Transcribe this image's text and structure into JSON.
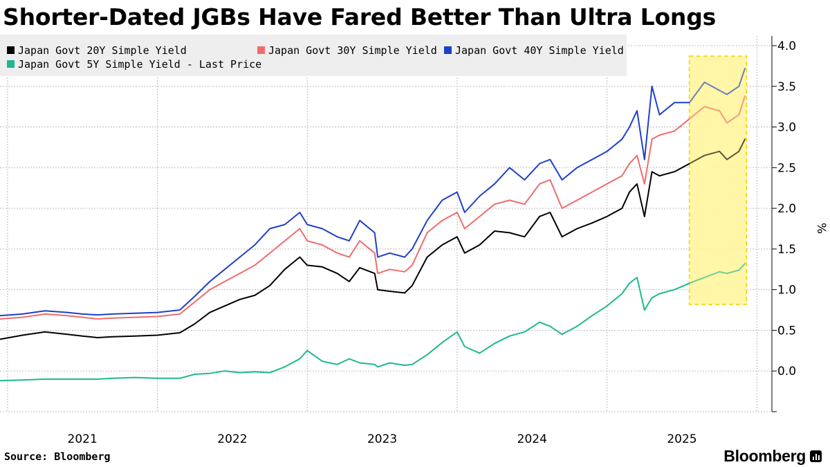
{
  "header": {
    "title": "Shorter-Dated JGBs Have Fared Better Than Ultra Longs"
  },
  "footer": {
    "source": "Source: Bloomberg",
    "brand": "Bloomberg"
  },
  "chart_data": {
    "type": "line",
    "title": "Shorter-Dated JGBs Have Fared Better Than Ultra Longs",
    "ylabel": "%",
    "xlabel": "",
    "ylim": [
      -0.5,
      4.0
    ],
    "xlim": [
      2020.45,
      2025.6
    ],
    "yticks": [
      0.0,
      0.5,
      1.0,
      1.5,
      2.0,
      2.5,
      3.0,
      3.5,
      4.0
    ],
    "ytick_labels": [
      "0.0",
      "0.5",
      "1.0",
      "1.5",
      "2.0",
      "2.5",
      "3.0",
      "3.5",
      "4.0"
    ],
    "xticks": [
      2021,
      2022,
      2023,
      2024,
      2025
    ],
    "xtick_labels": [
      "2021",
      "2022",
      "2023",
      "2024",
      "2025"
    ],
    "grid": true,
    "legend_position": "top-left",
    "highlight": {
      "x_start": 2025.05,
      "x_end": 2025.43,
      "y_start": 0.82,
      "y_end": 3.87,
      "color": "#fff59d",
      "border": "#f5d800"
    },
    "series": [
      {
        "name": "Japan Govt 20Y Simple Yield",
        "color": "#000000",
        "x": [
          2020.45,
          2020.6,
          2020.75,
          2020.9,
          2021.0,
          2021.1,
          2021.2,
          2021.35,
          2021.5,
          2021.65,
          2021.75,
          2021.85,
          2021.95,
          2022.05,
          2022.15,
          2022.25,
          2022.35,
          2022.45,
          2022.5,
          2022.6,
          2022.7,
          2022.78,
          2022.85,
          2022.95,
          2022.97,
          2023.05,
          2023.15,
          2023.2,
          2023.3,
          2023.4,
          2023.5,
          2023.55,
          2023.65,
          2023.75,
          2023.85,
          2023.95,
          2024.05,
          2024.12,
          2024.2,
          2024.3,
          2024.4,
          2024.5,
          2024.6,
          2024.65,
          2024.7,
          2024.75,
          2024.8,
          2024.85,
          2024.95,
          2025.05,
          2025.15,
          2025.25,
          2025.3,
          2025.38,
          2025.42
        ],
        "values": [
          0.39,
          0.44,
          0.48,
          0.45,
          0.43,
          0.41,
          0.42,
          0.43,
          0.44,
          0.47,
          0.58,
          0.72,
          0.8,
          0.88,
          0.93,
          1.05,
          1.25,
          1.4,
          1.3,
          1.28,
          1.2,
          1.1,
          1.27,
          1.2,
          1.0,
          0.98,
          0.96,
          1.05,
          1.4,
          1.55,
          1.65,
          1.45,
          1.55,
          1.72,
          1.7,
          1.65,
          1.9,
          1.95,
          1.65,
          1.75,
          1.82,
          1.9,
          2.0,
          2.2,
          2.3,
          1.9,
          2.45,
          2.4,
          2.45,
          2.55,
          2.65,
          2.7,
          2.6,
          2.7,
          2.85
        ]
      },
      {
        "name": "Japan Govt 30Y Simple Yield",
        "color": "#f06b6b",
        "x": [
          2020.45,
          2020.6,
          2020.75,
          2020.9,
          2021.0,
          2021.1,
          2021.2,
          2021.35,
          2021.5,
          2021.65,
          2021.75,
          2021.85,
          2021.95,
          2022.05,
          2022.15,
          2022.25,
          2022.35,
          2022.45,
          2022.5,
          2022.6,
          2022.7,
          2022.78,
          2022.85,
          2022.95,
          2022.97,
          2023.05,
          2023.15,
          2023.2,
          2023.3,
          2023.4,
          2023.5,
          2023.55,
          2023.65,
          2023.75,
          2023.85,
          2023.95,
          2024.05,
          2024.12,
          2024.2,
          2024.3,
          2024.4,
          2024.5,
          2024.6,
          2024.65,
          2024.7,
          2024.75,
          2024.8,
          2024.85,
          2024.95,
          2025.05,
          2025.15,
          2025.25,
          2025.3,
          2025.38,
          2025.42
        ],
        "values": [
          0.64,
          0.66,
          0.7,
          0.68,
          0.66,
          0.64,
          0.65,
          0.66,
          0.67,
          0.7,
          0.85,
          1.0,
          1.1,
          1.2,
          1.3,
          1.45,
          1.6,
          1.75,
          1.6,
          1.55,
          1.45,
          1.4,
          1.6,
          1.45,
          1.2,
          1.25,
          1.22,
          1.3,
          1.7,
          1.85,
          1.95,
          1.75,
          1.9,
          2.05,
          2.1,
          2.05,
          2.3,
          2.35,
          2.0,
          2.1,
          2.2,
          2.3,
          2.4,
          2.55,
          2.65,
          2.3,
          2.85,
          2.9,
          2.95,
          3.1,
          3.25,
          3.2,
          3.05,
          3.15,
          3.38
        ]
      },
      {
        "name": "Japan Govt 40Y Simple Yield",
        "color": "#1e3fc9",
        "x": [
          2020.45,
          2020.6,
          2020.75,
          2020.9,
          2021.0,
          2021.1,
          2021.2,
          2021.35,
          2021.5,
          2021.65,
          2021.75,
          2021.85,
          2021.95,
          2022.05,
          2022.15,
          2022.25,
          2022.35,
          2022.45,
          2022.5,
          2022.6,
          2022.7,
          2022.78,
          2022.85,
          2022.95,
          2022.97,
          2023.05,
          2023.15,
          2023.2,
          2023.3,
          2023.4,
          2023.5,
          2023.55,
          2023.65,
          2023.75,
          2023.85,
          2023.95,
          2024.05,
          2024.12,
          2024.2,
          2024.3,
          2024.4,
          2024.5,
          2024.6,
          2024.65,
          2024.7,
          2024.75,
          2024.8,
          2024.85,
          2024.95,
          2025.05,
          2025.15,
          2025.25,
          2025.3,
          2025.38,
          2025.42
        ],
        "values": [
          0.68,
          0.7,
          0.74,
          0.72,
          0.7,
          0.69,
          0.7,
          0.71,
          0.72,
          0.75,
          0.92,
          1.1,
          1.25,
          1.4,
          1.55,
          1.75,
          1.8,
          1.95,
          1.8,
          1.75,
          1.65,
          1.6,
          1.85,
          1.7,
          1.4,
          1.45,
          1.4,
          1.5,
          1.85,
          2.1,
          2.2,
          1.95,
          2.15,
          2.3,
          2.5,
          2.35,
          2.55,
          2.6,
          2.35,
          2.5,
          2.6,
          2.7,
          2.85,
          3.0,
          3.2,
          2.6,
          3.5,
          3.15,
          3.3,
          3.3,
          3.55,
          3.45,
          3.4,
          3.5,
          3.72
        ]
      },
      {
        "name": "Japan Govt 5Y Simple Yield - Last Price",
        "color": "#1db890",
        "x": [
          2020.45,
          2020.6,
          2020.75,
          2020.9,
          2021.0,
          2021.1,
          2021.2,
          2021.35,
          2021.5,
          2021.65,
          2021.75,
          2021.85,
          2021.95,
          2022.05,
          2022.15,
          2022.25,
          2022.35,
          2022.45,
          2022.5,
          2022.6,
          2022.7,
          2022.78,
          2022.85,
          2022.95,
          2022.97,
          2023.05,
          2023.15,
          2023.2,
          2023.3,
          2023.4,
          2023.5,
          2023.55,
          2023.65,
          2023.75,
          2023.85,
          2023.95,
          2024.05,
          2024.12,
          2024.2,
          2024.3,
          2024.4,
          2024.5,
          2024.6,
          2024.65,
          2024.7,
          2024.75,
          2024.8,
          2024.85,
          2024.95,
          2025.05,
          2025.15,
          2025.25,
          2025.3,
          2025.38,
          2025.42
        ],
        "values": [
          -0.12,
          -0.11,
          -0.1,
          -0.1,
          -0.1,
          -0.1,
          -0.09,
          -0.08,
          -0.09,
          -0.09,
          -0.04,
          -0.03,
          0.0,
          -0.02,
          -0.01,
          -0.02,
          0.05,
          0.15,
          0.25,
          0.12,
          0.08,
          0.15,
          0.1,
          0.08,
          0.05,
          0.1,
          0.07,
          0.08,
          0.2,
          0.35,
          0.48,
          0.3,
          0.22,
          0.34,
          0.43,
          0.48,
          0.6,
          0.55,
          0.45,
          0.55,
          0.68,
          0.8,
          0.95,
          1.08,
          1.15,
          0.75,
          0.9,
          0.95,
          1.0,
          1.08,
          1.15,
          1.22,
          1.2,
          1.24,
          1.32
        ]
      }
    ]
  }
}
